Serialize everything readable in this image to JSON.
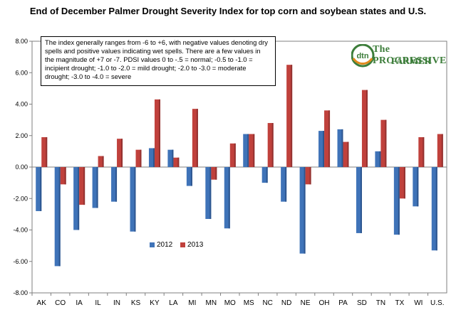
{
  "colors": {
    "series2012": "#3f73b8",
    "series2013": "#c0413c",
    "logo_green": "#3c7d3a",
    "logo_orange": "#e08a1e"
  },
  "logo": {
    "badge": "dtn",
    "line1": "The PROGRESSIVE",
    "line2": "FARMER"
  },
  "chart_data": {
    "type": "bar",
    "title": "End of December Palmer Drought Severity Index for top corn and soybean states and U.S.",
    "note": "The index generally ranges from -6 to +6, with negative values denoting dry spells and positive values indicating wet spells. There are a few values in the magnitude of +7 or -7. PDSI values 0 to -.5 = normal; -0.5 to -1.0 = incipient drought; -1.0 to -2.0 = mild drought; -2.0 to -3.0 = moderate drought; -3.0 to -4.0 = severe",
    "categories": [
      "AK",
      "CO",
      "IA",
      "IL",
      "IN",
      "KS",
      "KY",
      "LA",
      "MI",
      "MN",
      "MO",
      "MS",
      "NC",
      "ND",
      "NE",
      "OH",
      "PA",
      "SD",
      "TN",
      "TX",
      "WI",
      "U.S."
    ],
    "series": [
      {
        "name": "2012",
        "values": [
          -2.8,
          -6.3,
          -4.0,
          -2.6,
          -2.2,
          -4.1,
          1.2,
          1.1,
          -1.2,
          -3.3,
          -3.9,
          2.1,
          -1.0,
          -2.2,
          -5.5,
          2.3,
          2.4,
          -4.2,
          1.0,
          -4.3,
          -2.5,
          -5.3
        ]
      },
      {
        "name": "2013",
        "values": [
          1.9,
          -1.1,
          -2.4,
          0.7,
          1.8,
          1.1,
          4.3,
          0.6,
          3.7,
          -0.8,
          1.5,
          2.1,
          2.8,
          6.5,
          -1.1,
          3.6,
          1.6,
          4.9,
          3.0,
          -2.0,
          1.9,
          2.1
        ]
      }
    ],
    "yticks": [
      "8.00",
      "6.00",
      "4.00",
      "2.00",
      "0.00",
      "-2.00",
      "-4.00",
      "-6.00",
      "-8.00"
    ],
    "ylim": [
      -8,
      8
    ],
    "legend": "bottom-center",
    "grid": false
  }
}
